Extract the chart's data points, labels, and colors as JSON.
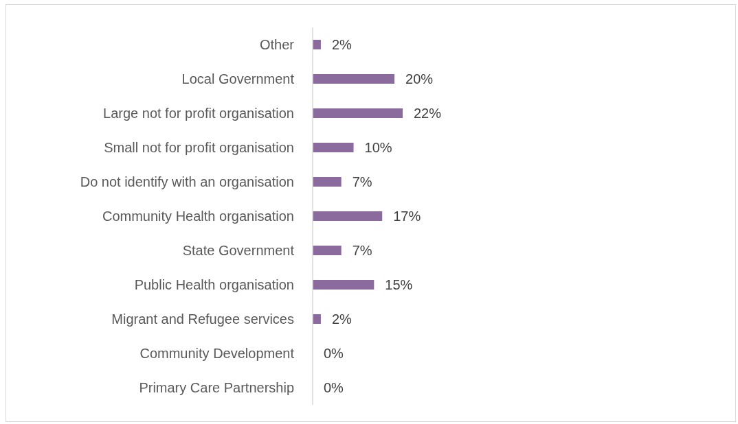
{
  "chart_data": {
    "type": "bar",
    "orientation": "horizontal",
    "categories": [
      "Other",
      "Local Government",
      "Large not for profit organisation",
      "Small not for profit organisation",
      "Do not identify with an organisation",
      "Community Health organisation",
      "State Government",
      "Public Health organisation",
      "Migrant and Refugee services",
      "Community Development",
      "Primary Care Partnership"
    ],
    "values": [
      2,
      20,
      22,
      10,
      7,
      17,
      7,
      15,
      2,
      0,
      0
    ],
    "value_labels": [
      "2%",
      "20%",
      "22%",
      "10%",
      "7%",
      "17%",
      "7%",
      "15%",
      "2%",
      "0%",
      "0%"
    ],
    "color": "#8b6b9d"
  }
}
